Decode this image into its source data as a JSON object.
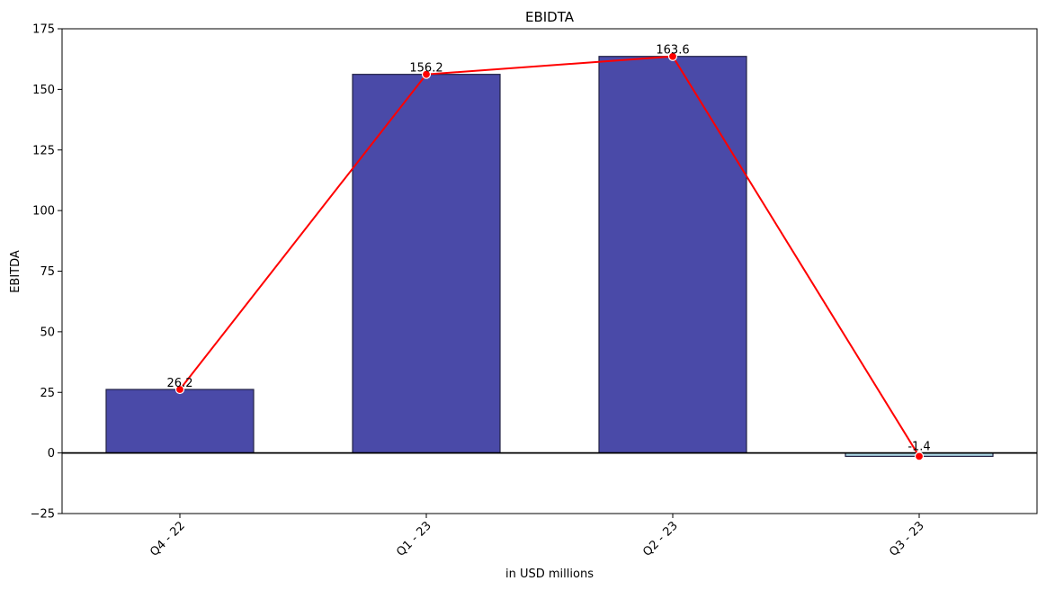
{
  "chart_data": {
    "type": "bar",
    "title": "EBIDTA",
    "xlabel": "in USD millions",
    "ylabel": "EBITDA",
    "categories": [
      "Q4 - 22",
      "Q1 - 23",
      "Q2 - 23",
      "Q3 - 23"
    ],
    "values": [
      26.2,
      156.2,
      163.6,
      -1.4
    ],
    "data_labels": [
      "26.2",
      "156.2",
      "163.6",
      "-1.4"
    ],
    "ylim": [
      -25,
      175
    ],
    "yticks": [
      -25,
      0,
      25,
      50,
      75,
      100,
      125,
      150,
      175
    ],
    "ytick_labels": [
      "−25",
      "0",
      "25",
      "50",
      "75",
      "100",
      "125",
      "150",
      "175"
    ],
    "overlay_line": {
      "type": "line",
      "values": [
        26.2,
        156.2,
        163.6,
        -1.4
      ],
      "color": "#ff0000"
    },
    "grid": false,
    "zero_line": true,
    "colors": {
      "positive_bar": "#4a4aa8",
      "negative_bar": "#add8e6",
      "bar_edge": "#222244",
      "line": "#ff0000",
      "marker_edge": "#ffffff"
    }
  }
}
